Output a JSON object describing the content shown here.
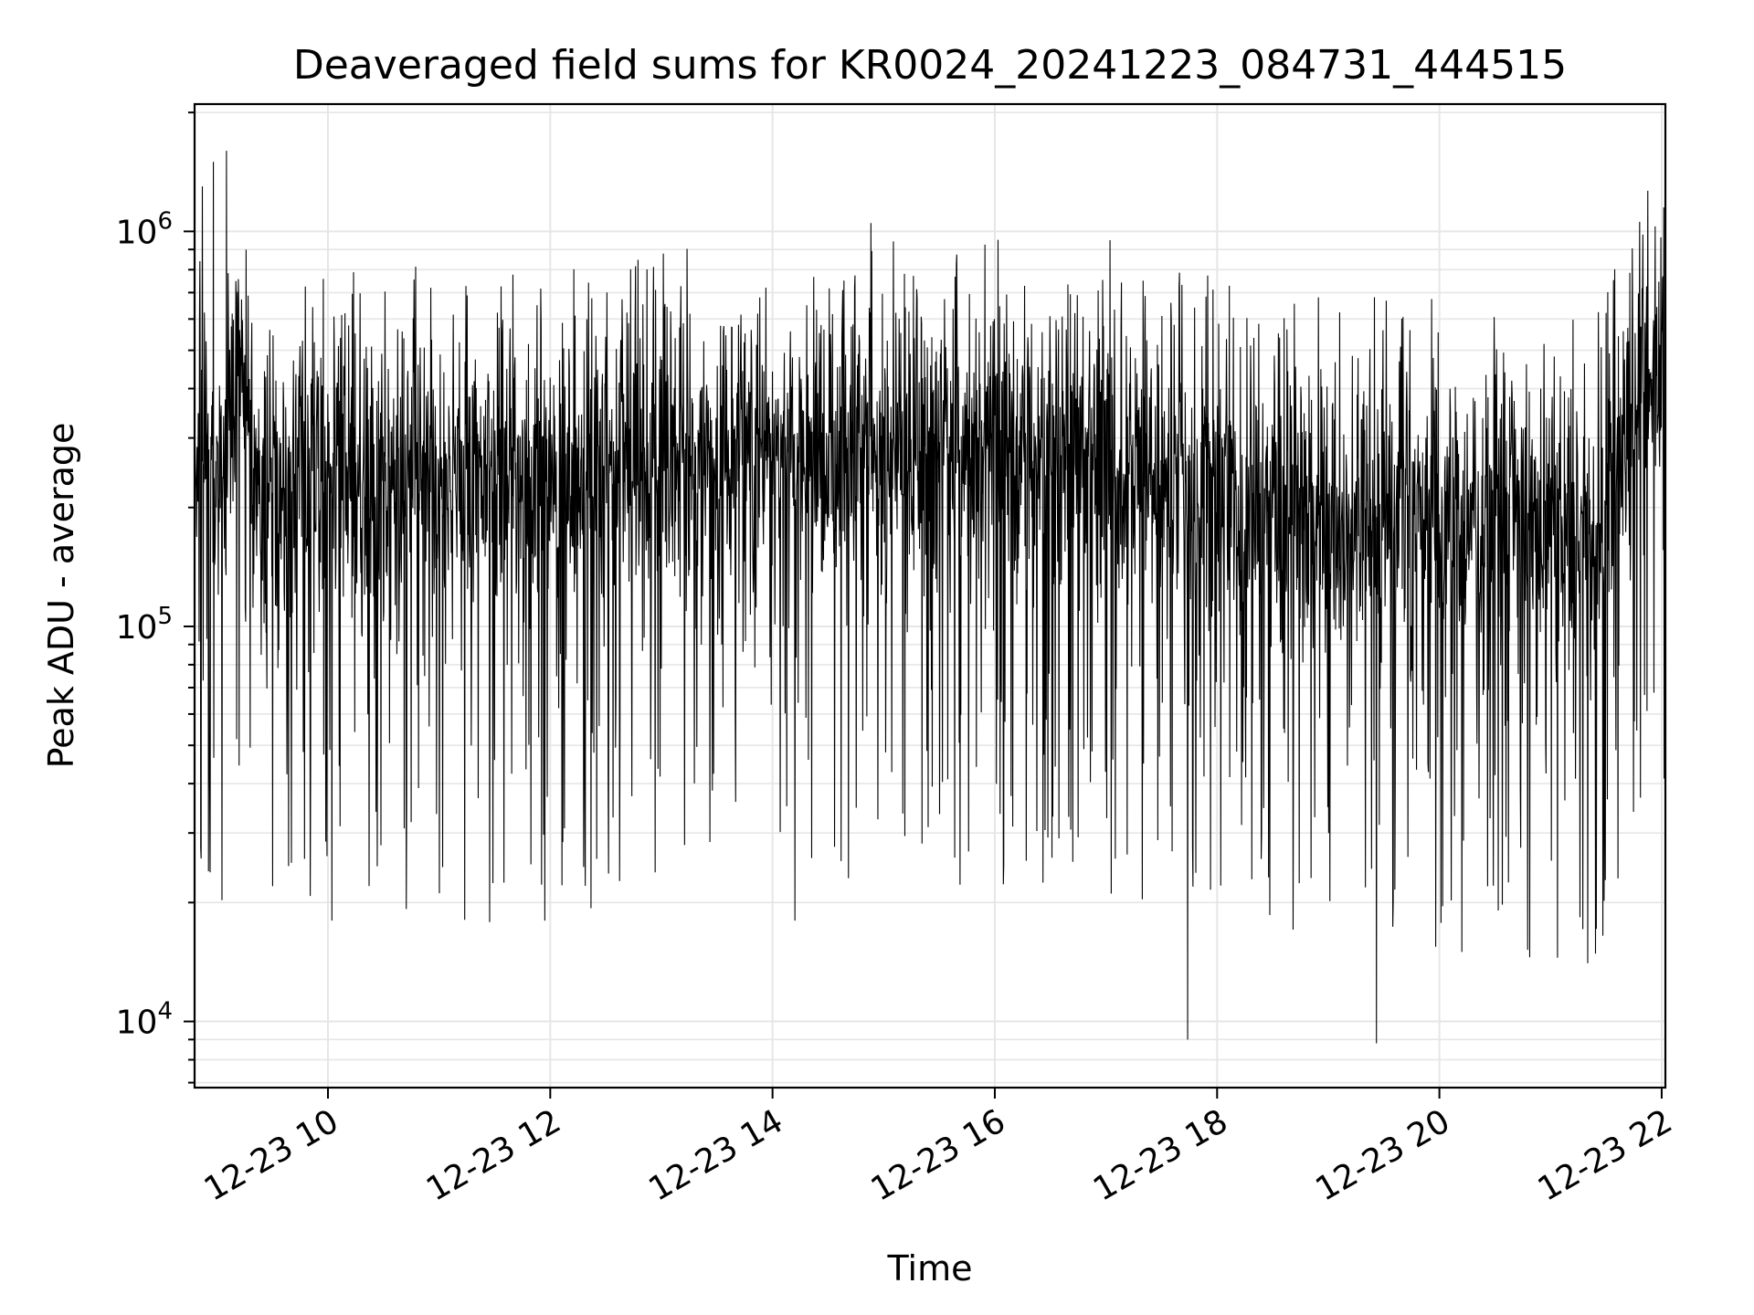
{
  "chart_data": {
    "type": "line",
    "title": "Deaveraged field sums for KR0024_20241223_084731_444515",
    "xlabel": "Time",
    "ylabel": "Peak ADU - average",
    "x_scale": "time",
    "y_scale": "log",
    "xlim": [
      "12-23 08:48",
      "12-23 22:02"
    ],
    "ylim": [
      6800,
      2100000
    ],
    "x_ticks": [
      {
        "value": "12-23 10:00",
        "label": "12-23 10"
      },
      {
        "value": "12-23 12:00",
        "label": "12-23 12"
      },
      {
        "value": "12-23 14:00",
        "label": "12-23 14"
      },
      {
        "value": "12-23 16:00",
        "label": "12-23 16"
      },
      {
        "value": "12-23 18:00",
        "label": "12-23 18"
      },
      {
        "value": "12-23 20:00",
        "label": "12-23 20"
      },
      {
        "value": "12-23 22:00",
        "label": "12-23 22"
      }
    ],
    "y_ticks": [
      {
        "value": 10000,
        "base": "10",
        "exp": "4"
      },
      {
        "value": 100000,
        "base": "10",
        "exp": "5"
      },
      {
        "value": 1000000,
        "base": "10",
        "exp": "6"
      }
    ],
    "grid": true,
    "line_color": "#000000",
    "grid_color": "#e6e6e6",
    "series": [
      {
        "x": [
          "12-23 08:48",
          "12-23 08:56",
          "12-23 09:05",
          "12-23 09:13",
          "12-23 09:20",
          "12-23 09:30",
          "12-23 09:45",
          "12-23 10:00",
          "12-23 10:30",
          "12-23 11:00",
          "12-23 11:30",
          "12-23 12:00",
          "12-23 12:30",
          "12-23 13:00",
          "12-23 13:30",
          "12-23 14:00",
          "12-23 14:30",
          "12-23 15:00",
          "12-23 15:30",
          "12-23 16:00",
          "12-23 16:30",
          "12-23 17:00",
          "12-23 17:30",
          "12-23 18:00",
          "12-23 18:30",
          "12-23 19:00",
          "12-23 19:30",
          "12-23 20:00",
          "12-23 20:30",
          "12-23 21:00",
          "12-23 21:25",
          "12-23 21:40",
          "12-23 21:50",
          "12-23 22:02"
        ],
        "y": [
          350000,
          260000,
          230000,
          500000,
          250000,
          220000,
          220000,
          230000,
          240000,
          230000,
          220000,
          230000,
          240000,
          250000,
          270000,
          270000,
          260000,
          270000,
          270000,
          270000,
          260000,
          240000,
          230000,
          220000,
          210000,
          200000,
          200000,
          190000,
          180000,
          180000,
          170000,
          330000,
          400000,
          450000
        ]
      }
    ],
    "spikes": [
      {
        "x": "12-23 08:52",
        "y": 1300000
      },
      {
        "x": "12-23 08:58",
        "y": 1500000
      },
      {
        "x": "12-23 09:05",
        "y": 1600000
      },
      {
        "x": "12-23 09:30",
        "y": 22000
      },
      {
        "x": "12-23 10:02",
        "y": 18000
      },
      {
        "x": "12-23 11:57",
        "y": 18000
      },
      {
        "x": "12-23 14:12",
        "y": 18000
      },
      {
        "x": "12-23 14:53",
        "y": 1050000
      },
      {
        "x": "12-23 17:02",
        "y": 950000
      },
      {
        "x": "12-23 17:44",
        "y": 9000
      },
      {
        "x": "12-23 19:26",
        "y": 8800
      },
      {
        "x": "12-23 20:12",
        "y": 15000
      },
      {
        "x": "12-23 22:01",
        "y": 1150000
      }
    ]
  }
}
